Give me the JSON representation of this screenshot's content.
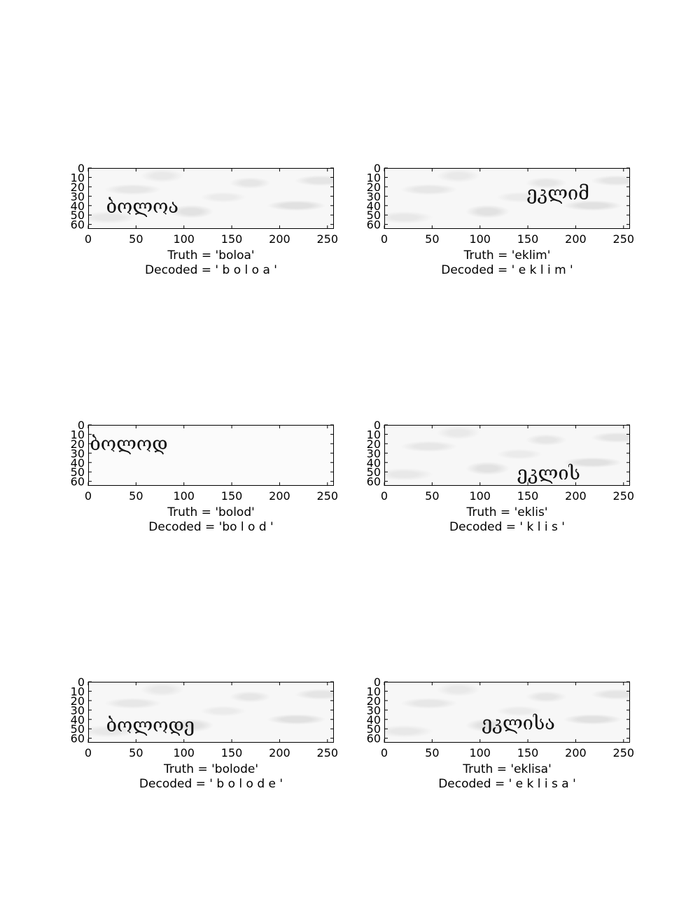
{
  "chart_data": [
    {
      "type": "image",
      "image_text": "ბოლოა",
      "truth_label": "Truth = 'boloa'",
      "decoded_label": "Decoded = ' b o l o a '",
      "x_ticks": [
        0,
        50,
        100,
        150,
        200,
        250
      ],
      "y_ticks": [
        0,
        10,
        20,
        30,
        40,
        50,
        60
      ],
      "xlim": [
        0,
        256
      ],
      "ylim": [
        64,
        0
      ],
      "text_x": 18,
      "text_y": 41
    },
    {
      "type": "image",
      "image_text": "ეკლიმ",
      "truth_label": "Truth = 'eklim'",
      "decoded_label": "Decoded = ' e k l i m '",
      "x_ticks": [
        0,
        50,
        100,
        150,
        200,
        250
      ],
      "y_ticks": [
        0,
        10,
        20,
        30,
        40,
        50,
        60
      ],
      "xlim": [
        0,
        256
      ],
      "ylim": [
        64,
        0
      ],
      "text_x": 148,
      "text_y": 27
    },
    {
      "type": "image",
      "image_text": "ბოლოდ",
      "truth_label": "Truth = 'bolod'",
      "decoded_label": "Decoded = 'bo l o d '",
      "x_ticks": [
        0,
        50,
        100,
        150,
        200,
        250
      ],
      "y_ticks": [
        0,
        10,
        20,
        30,
        40,
        50,
        60
      ],
      "xlim": [
        0,
        256
      ],
      "ylim": [
        64,
        0
      ],
      "text_x": 1,
      "text_y": 20
    },
    {
      "type": "image",
      "image_text": "ეკლის",
      "truth_label": "Truth = 'eklis'",
      "decoded_label": "Decoded = ' k l i s '",
      "x_ticks": [
        0,
        50,
        100,
        150,
        200,
        250
      ],
      "y_ticks": [
        0,
        10,
        20,
        30,
        40,
        50,
        60
      ],
      "xlim": [
        0,
        256
      ],
      "ylim": [
        64,
        0
      ],
      "text_x": 138,
      "text_y": 51
    },
    {
      "type": "image",
      "image_text": "ბოლოდე",
      "truth_label": "Truth = 'bolode'",
      "decoded_label": "Decoded = ' b o l o d e '",
      "x_ticks": [
        0,
        50,
        100,
        150,
        200,
        250
      ],
      "y_ticks": [
        0,
        10,
        20,
        30,
        40,
        50,
        60
      ],
      "xlim": [
        0,
        256
      ],
      "ylim": [
        64,
        0
      ],
      "text_x": 18,
      "text_y": 46
    },
    {
      "type": "image",
      "image_text": "ეკლისა",
      "truth_label": "Truth = 'eklisa'",
      "decoded_label": "Decoded = ' e k l i s a '",
      "x_ticks": [
        0,
        50,
        100,
        150,
        200,
        250
      ],
      "y_ticks": [
        0,
        10,
        20,
        30,
        40,
        50,
        60
      ],
      "xlim": [
        0,
        256
      ],
      "ylim": [
        64,
        0
      ],
      "text_x": 101,
      "text_y": 44
    }
  ]
}
